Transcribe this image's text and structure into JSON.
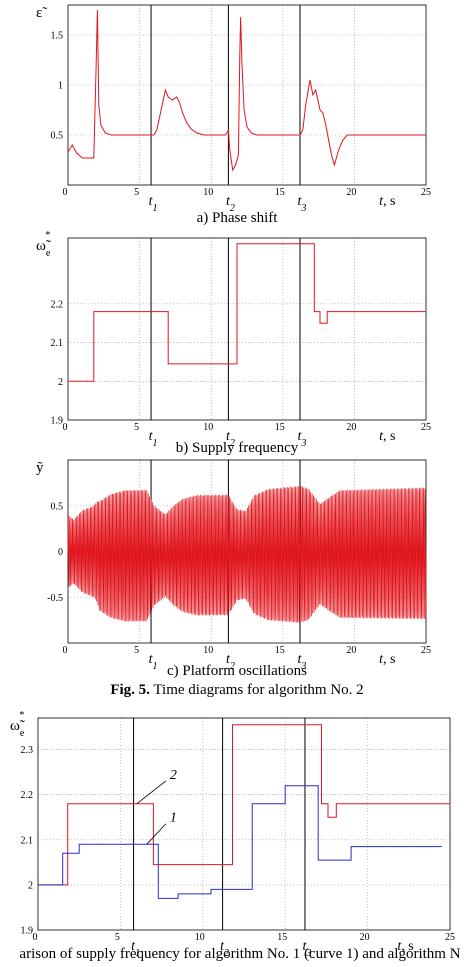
{
  "figure_caption": {
    "label": "Fig. 5.",
    "text": "Time diagrams for algorithm No. 2"
  },
  "bottom_caption": "arison of supply frequency for algorithm No. 1 (curve 1) and algorithm N",
  "colors": {
    "red": "#e0161d",
    "blue": "#2330c8",
    "axis": "#000000",
    "grid": "#9a9a9a"
  },
  "chart_data": [
    {
      "type": "line",
      "caption": "a) Phase shift",
      "ylabel": "ε̃",
      "xlabel": "t, s",
      "xlim": [
        0,
        25
      ],
      "ylim": [
        0,
        1.8
      ],
      "xticks": [
        0,
        5,
        10,
        15,
        20,
        25
      ],
      "yticks": [
        0.5,
        1,
        1.5
      ],
      "grid": true,
      "markers": [
        {
          "label": "t",
          "sub": "1",
          "x": 5.8
        },
        {
          "label": "t",
          "sub": "2",
          "x": 11.2
        },
        {
          "label": "t",
          "sub": "3",
          "x": 16.2
        }
      ],
      "series": [
        {
          "color": "red",
          "x": [
            0,
            0.3,
            0.6,
            1.0,
            1.8,
            1.95,
            2.05,
            2.15,
            2.3,
            2.6,
            3.0,
            4.0,
            5.0,
            5.8,
            6.0,
            6.2,
            6.5,
            6.8,
            7.0,
            7.3,
            7.6,
            7.8,
            8.0,
            8.3,
            8.6,
            9.0,
            9.5,
            10.0,
            11.0,
            11.2,
            11.3,
            11.5,
            11.7,
            11.9,
            12.0,
            12.05,
            12.15,
            12.3,
            12.5,
            12.8,
            13.2,
            14.0,
            15.0,
            16.2,
            16.4,
            16.6,
            16.9,
            17.1,
            17.3,
            17.6,
            17.8,
            18.0,
            18.2,
            18.4,
            18.6,
            18.9,
            19.2,
            19.5,
            20.0,
            21.0,
            25.0
          ],
          "y": [
            0.33,
            0.4,
            0.32,
            0.27,
            0.27,
            1.1,
            1.75,
            0.8,
            0.6,
            0.52,
            0.5,
            0.5,
            0.5,
            0.5,
            0.5,
            0.55,
            0.75,
            0.95,
            0.88,
            0.85,
            0.88,
            0.82,
            0.72,
            0.62,
            0.56,
            0.52,
            0.5,
            0.5,
            0.5,
            0.55,
            0.35,
            0.15,
            0.2,
            0.3,
            1.3,
            1.68,
            1.2,
            0.75,
            0.58,
            0.52,
            0.5,
            0.5,
            0.5,
            0.5,
            0.55,
            0.8,
            1.05,
            0.9,
            0.95,
            0.75,
            0.72,
            0.6,
            0.45,
            0.3,
            0.2,
            0.35,
            0.45,
            0.5,
            0.5,
            0.5,
            0.5
          ]
        }
      ]
    },
    {
      "type": "line",
      "caption": "b) Supply frequency",
      "ylabel": "ω̃",
      "ylabel_sub": "e",
      "ylabel_sup": "*",
      "xlabel": "t, s",
      "xlim": [
        0,
        25
      ],
      "ylim": [
        1.9,
        2.37
      ],
      "xticks": [
        0,
        5,
        10,
        15,
        20,
        25
      ],
      "yticks": [
        1.9,
        2,
        2.1,
        2.2
      ],
      "grid": true,
      "markers": [
        {
          "label": "t",
          "sub": "1",
          "x": 5.8
        },
        {
          "label": "t",
          "sub": "2",
          "x": 11.2
        },
        {
          "label": "t",
          "sub": "3",
          "x": 16.2
        }
      ],
      "series": [
        {
          "color": "red",
          "x": [
            0,
            1.8,
            1.8,
            7.0,
            7.0,
            11.8,
            11.8,
            17.2,
            17.2,
            17.6,
            17.6,
            18.1,
            18.1,
            25
          ],
          "y": [
            2.0,
            2.0,
            2.18,
            2.18,
            2.045,
            2.045,
            2.355,
            2.355,
            2.18,
            2.18,
            2.15,
            2.15,
            2.18,
            2.18
          ]
        }
      ]
    },
    {
      "type": "line",
      "caption": "c) Platform oscillations",
      "ylabel": "ỹ",
      "xlabel": "t, s",
      "xlim": [
        0,
        25
      ],
      "ylim": [
        -1,
        1
      ],
      "xticks": [
        0,
        5,
        10,
        15,
        20,
        25
      ],
      "yticks": [
        -0.5,
        0,
        0.5
      ],
      "grid": true,
      "markers": [
        {
          "label": "t",
          "sub": "1",
          "x": 5.8
        },
        {
          "label": "t",
          "sub": "2",
          "x": 11.2
        },
        {
          "label": "t",
          "sub": "3",
          "x": 16.2
        }
      ],
      "oscillation": {
        "cycles_per_s": 4.0,
        "envelope_t": [
          0,
          0.4,
          1.0,
          1.8,
          2.2,
          3.0,
          4.0,
          5.5,
          6.0,
          6.8,
          7.4,
          8.0,
          9.0,
          11.2,
          11.8,
          12.4,
          13.0,
          14.0,
          16.2,
          16.8,
          17.6,
          18.2,
          19.0,
          25
        ],
        "envelope_a": [
          0.4,
          0.35,
          0.45,
          0.5,
          0.6,
          0.68,
          0.72,
          0.72,
          0.55,
          0.45,
          0.55,
          0.62,
          0.66,
          0.66,
          0.5,
          0.48,
          0.65,
          0.72,
          0.75,
          0.72,
          0.55,
          0.62,
          0.7,
          0.72
        ],
        "offset_t": [
          0,
          2,
          2.2,
          25
        ],
        "offset_y": [
          0,
          0,
          -0.05,
          -0.02
        ]
      }
    },
    {
      "type": "line",
      "caption": "",
      "ylabel": "ω̃",
      "ylabel_sub": "e",
      "ylabel_sup": "*",
      "xlabel": "t, s",
      "xlim": [
        0,
        25
      ],
      "ylim": [
        1.9,
        2.37
      ],
      "xticks": [
        0,
        5,
        10,
        15,
        20,
        25
      ],
      "yticks": [
        1.9,
        2,
        2.1,
        2.2,
        2.3
      ],
      "grid": true,
      "markers": [
        {
          "label": "t",
          "sub": "1",
          "x": 5.8
        },
        {
          "label": "t",
          "sub": "2",
          "x": 11.2
        },
        {
          "label": "t",
          "sub": "3",
          "x": 16.2
        }
      ],
      "annotations": [
        {
          "text": "2",
          "x": 8.0,
          "y": 2.235,
          "tip_x": 6.0,
          "tip_y": 2.18
        },
        {
          "text": "1",
          "x": 8.0,
          "y": 2.14,
          "tip_x": 6.6,
          "tip_y": 2.09
        }
      ],
      "series": [
        {
          "color": "red",
          "x": [
            0,
            1.8,
            1.8,
            7.0,
            7.0,
            11.8,
            11.8,
            17.2,
            17.2,
            17.6,
            17.6,
            18.1,
            18.1,
            25
          ],
          "y": [
            2.0,
            2.0,
            2.18,
            2.18,
            2.045,
            2.045,
            2.355,
            2.355,
            2.18,
            2.18,
            2.15,
            2.15,
            2.18,
            2.18
          ]
        },
        {
          "color": "blue",
          "x": [
            0,
            1.5,
            1.5,
            2.5,
            2.5,
            7.3,
            7.3,
            8.5,
            8.5,
            10.5,
            10.5,
            13.0,
            13.0,
            15.0,
            15.0,
            17.0,
            17.0,
            19.0,
            19.0,
            24.5
          ],
          "y": [
            2.0,
            2.0,
            2.07,
            2.07,
            2.09,
            2.09,
            1.97,
            1.97,
            1.98,
            1.98,
            1.99,
            1.99,
            2.18,
            2.18,
            2.22,
            2.22,
            2.055,
            2.055,
            2.085,
            2.085
          ]
        }
      ]
    }
  ]
}
